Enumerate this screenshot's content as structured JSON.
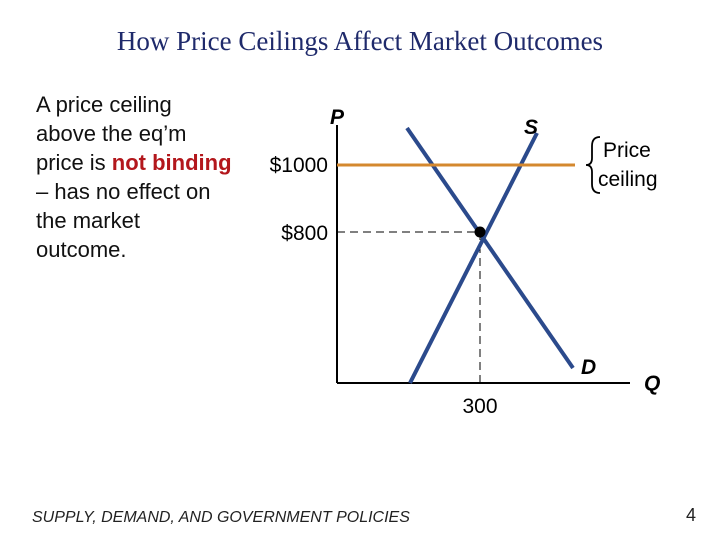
{
  "slide": {
    "title": "How Price Ceilings Affect Market Outcomes",
    "body": {
      "part1": "A price ceiling above the eq’m price is ",
      "highlight": "not binding",
      "part2": " – has no effect on the market outcome."
    },
    "footer": "SUPPLY, DEMAND, AND GOVERNMENT POLICIES",
    "page_number": "4"
  },
  "graph": {
    "y_axis_label": "P",
    "x_axis_label": "Q",
    "supply_label": "S",
    "demand_label": "D",
    "ceiling_label_line1": "Price",
    "ceiling_label_line2": "ceiling",
    "ceiling_price_label": "$1000",
    "equilibrium_price_label": "$800",
    "equilibrium_quantity_label": "300",
    "ceiling_price": 1000,
    "equilibrium_price": 800,
    "equilibrium_quantity": 300,
    "colors": {
      "ceiling_line": "#d4882f",
      "curves": "#2b4a8c",
      "axes": "#000000",
      "title": "#1f2a6b",
      "highlight": "#b3171c"
    }
  }
}
